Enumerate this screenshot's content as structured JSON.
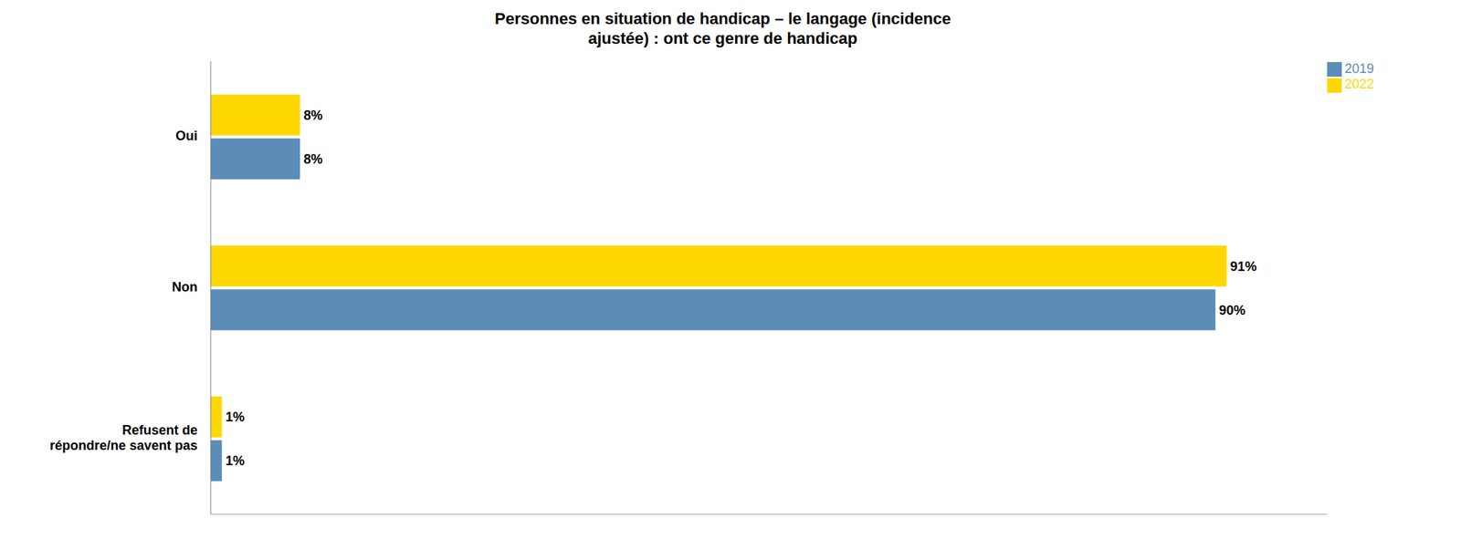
{
  "chart_data": {
    "type": "bar",
    "orientation": "horizontal",
    "title": "Personnes en situation de handicap – le langage (incidence\najustée) : ont ce genre de handicap",
    "categories": [
      "Oui",
      "Non",
      "Refusent de\nrépondre/ne savent pas"
    ],
    "series": [
      {
        "name": "2022",
        "color": "#FFD700",
        "values": [
          8,
          91,
          1
        ],
        "value_labels": [
          "8%",
          "91%",
          "1%"
        ]
      },
      {
        "name": "2019",
        "color": "#5B8DB8",
        "values": [
          8,
          90,
          1
        ],
        "value_labels": [
          "8%",
          "90%",
          "1%"
        ]
      }
    ],
    "xlim": [
      0,
      100
    ],
    "data_labels": true,
    "legend": "upper right",
    "grid": false,
    "tick_labels": "y"
  }
}
